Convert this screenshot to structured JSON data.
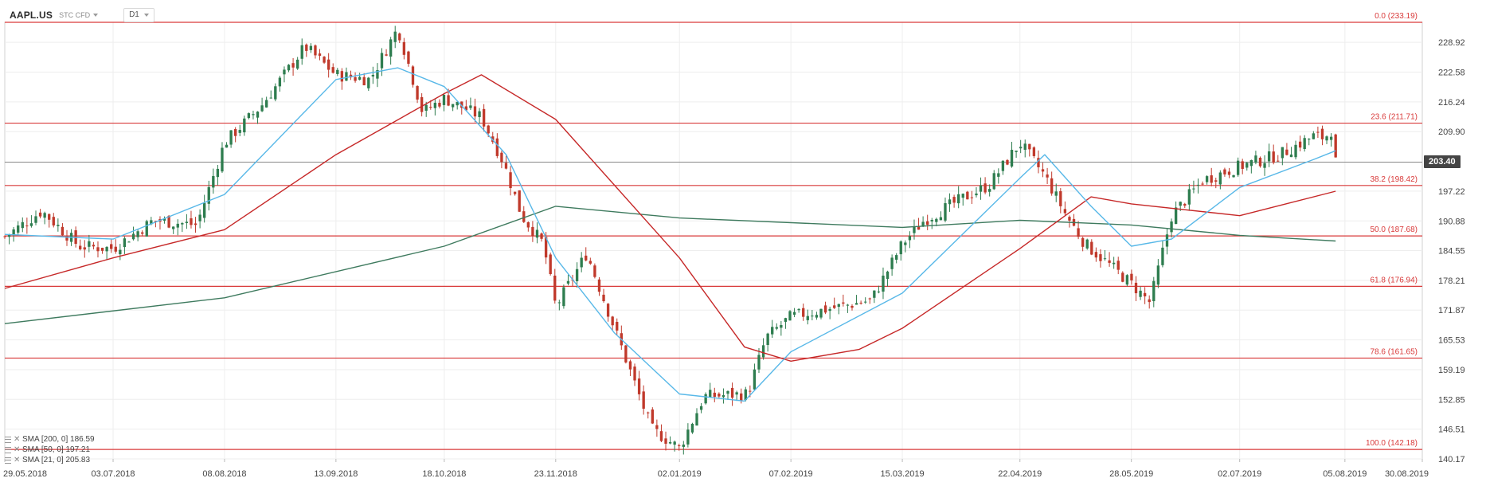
{
  "toolbar": {
    "symbol": "AAPL.US",
    "subtype": "STC CFD",
    "timeframe": "D1"
  },
  "legend": [
    {
      "label": "SMA [200, 0] 186.59"
    },
    {
      "label": "SMA [50, 0] 197.21"
    },
    {
      "label": "SMA [21, 0] 205.83"
    }
  ],
  "current_price": "203.40",
  "colors": {
    "up": "#2e7d4f",
    "down": "#c0392b",
    "fib": "#d93a3a",
    "sma200": "#3e7a5e",
    "sma50": "#c62828",
    "sma21": "#58b8e8",
    "grid": "#eeeeee",
    "price_line": "#888888"
  },
  "chart_data": {
    "type": "candlestick",
    "title": "",
    "ylim": [
      140.17,
      233.19
    ],
    "y_ticks": [
      "228.92",
      "222.58",
      "216.24",
      "209.90",
      "203.40",
      "197.22",
      "190.88",
      "184.55",
      "178.21",
      "171.87",
      "165.53",
      "159.19",
      "152.85",
      "146.51",
      "140.17"
    ],
    "x_labels": [
      "29.05.2018",
      "03.07.2018",
      "08.08.2018",
      "13.09.2018",
      "18.10.2018",
      "23.11.2018",
      "02.01.2019",
      "07.02.2019",
      "15.03.2019",
      "22.04.2019",
      "28.05.2019",
      "02.07.2019",
      "05.08.2019",
      "30.08.2019"
    ],
    "fib_levels": [
      {
        "label": "0.0 (233.19)",
        "value": 233.19
      },
      {
        "label": "23.6 (211.71)",
        "value": 211.71
      },
      {
        "label": "38.2 (198.42)",
        "value": 198.42
      },
      {
        "label": "50.0 (187.68)",
        "value": 187.68
      },
      {
        "label": "61.8 (176.94)",
        "value": 176.94
      },
      {
        "label": "78.6 (161.65)",
        "value": 161.65
      },
      {
        "label": "100.0 (142.18)",
        "value": 142.18
      }
    ],
    "price_line": 203.4,
    "close_path": [
      {
        "date": "29.05.2018",
        "close": 187.5
      },
      {
        "date": "10.06.2018",
        "close": 193.0
      },
      {
        "date": "22.06.2018",
        "close": 185.5
      },
      {
        "date": "03.07.2018",
        "close": 185.0
      },
      {
        "date": "16.07.2018",
        "close": 191.0
      },
      {
        "date": "30.07.2018",
        "close": 190.0
      },
      {
        "date": "08.08.2018",
        "close": 207.5
      },
      {
        "date": "20.08.2018",
        "close": 215.5
      },
      {
        "date": "03.09.2018",
        "close": 228.0
      },
      {
        "date": "13.09.2018",
        "close": 222.0
      },
      {
        "date": "24.09.2018",
        "close": 221.0
      },
      {
        "date": "03.10.2018",
        "close": 232.0
      },
      {
        "date": "11.10.2018",
        "close": 214.0
      },
      {
        "date": "18.10.2018",
        "close": 217.0
      },
      {
        "date": "30.10.2018",
        "close": 213.0
      },
      {
        "date": "06.11.2018",
        "close": 203.5
      },
      {
        "date": "12.11.2018",
        "close": 192.0
      },
      {
        "date": "19.11.2018",
        "close": 186.0
      },
      {
        "date": "23.11.2018",
        "close": 172.5
      },
      {
        "date": "03.12.2018",
        "close": 184.0
      },
      {
        "date": "12.12.2018",
        "close": 168.0
      },
      {
        "date": "24.12.2018",
        "close": 146.5
      },
      {
        "date": "02.01.2019",
        "close": 142.5
      },
      {
        "date": "10.01.2019",
        "close": 153.5
      },
      {
        "date": "24.01.2019",
        "close": 154.0
      },
      {
        "date": "30.01.2019",
        "close": 166.0
      },
      {
        "date": "07.02.2019",
        "close": 170.5
      },
      {
        "date": "22.02.2019",
        "close": 172.5
      },
      {
        "date": "05.03.2019",
        "close": 174.0
      },
      {
        "date": "15.03.2019",
        "close": 186.0
      },
      {
        "date": "22.03.2019",
        "close": 191.0
      },
      {
        "date": "03.04.2019",
        "close": 195.5
      },
      {
        "date": "12.04.2019",
        "close": 198.5
      },
      {
        "date": "22.04.2019",
        "close": 207.5
      },
      {
        "date": "30.04.2019",
        "close": 200.5
      },
      {
        "date": "07.05.2019",
        "close": 192.0
      },
      {
        "date": "13.05.2019",
        "close": 186.0
      },
      {
        "date": "28.05.2019",
        "close": 177.5
      },
      {
        "date": "03.06.2019",
        "close": 173.5
      },
      {
        "date": "10.06.2019",
        "close": 192.0
      },
      {
        "date": "20.06.2019",
        "close": 199.5
      },
      {
        "date": "02.07.2019",
        "close": 202.5
      },
      {
        "date": "15.07.2019",
        "close": 205.0
      },
      {
        "date": "26.07.2019",
        "close": 209.0
      },
      {
        "date": "30.07.2019",
        "close": 208.5
      },
      {
        "date": "31.07.2019",
        "close": 213.0
      },
      {
        "date": "01.08.2019",
        "close": 208.0
      },
      {
        "date": "02.08.2019",
        "close": 203.4
      }
    ],
    "series": [
      {
        "name": "SMA [200, 0] 186.59",
        "points": [
          {
            "date": "29.05.2018",
            "value": 169.0
          },
          {
            "date": "08.08.2018",
            "value": 174.5
          },
          {
            "date": "18.10.2018",
            "value": 185.5
          },
          {
            "date": "23.11.2018",
            "value": 194.0
          },
          {
            "date": "02.01.2019",
            "value": 191.5
          },
          {
            "date": "15.03.2019",
            "value": 189.5
          },
          {
            "date": "22.04.2019",
            "value": 191.0
          },
          {
            "date": "28.05.2019",
            "value": 190.0
          },
          {
            "date": "02.07.2019",
            "value": 187.8
          },
          {
            "date": "02.08.2019",
            "value": 186.59
          }
        ]
      },
      {
        "name": "SMA [50, 0] 197.21",
        "points": [
          {
            "date": "29.05.2018",
            "value": 176.5
          },
          {
            "date": "03.07.2018",
            "value": 183.0
          },
          {
            "date": "08.08.2018",
            "value": 189.0
          },
          {
            "date": "13.09.2018",
            "value": 205.0
          },
          {
            "date": "18.10.2018",
            "value": 218.0
          },
          {
            "date": "30.10.2018",
            "value": 222.0
          },
          {
            "date": "23.11.2018",
            "value": 212.5
          },
          {
            "date": "02.01.2019",
            "value": 183.0
          },
          {
            "date": "23.01.2019",
            "value": 164.0
          },
          {
            "date": "07.02.2019",
            "value": 161.0
          },
          {
            "date": "01.03.2019",
            "value": 163.5
          },
          {
            "date": "15.03.2019",
            "value": 168.0
          },
          {
            "date": "22.04.2019",
            "value": 185.0
          },
          {
            "date": "15.05.2019",
            "value": 196.0
          },
          {
            "date": "28.05.2019",
            "value": 194.5
          },
          {
            "date": "02.07.2019",
            "value": 192.0
          },
          {
            "date": "02.08.2019",
            "value": 197.21
          }
        ]
      },
      {
        "name": "SMA [21, 0] 205.83",
        "points": [
          {
            "date": "29.05.2018",
            "value": 188.0
          },
          {
            "date": "03.07.2018",
            "value": 187.0
          },
          {
            "date": "08.08.2018",
            "value": 196.5
          },
          {
            "date": "13.09.2018",
            "value": 221.0
          },
          {
            "date": "03.10.2018",
            "value": 223.5
          },
          {
            "date": "18.10.2018",
            "value": 219.5
          },
          {
            "date": "07.11.2018",
            "value": 205.0
          },
          {
            "date": "23.11.2018",
            "value": 183.0
          },
          {
            "date": "12.12.2018",
            "value": 167.0
          },
          {
            "date": "02.01.2019",
            "value": 154.0
          },
          {
            "date": "23.01.2019",
            "value": 152.5
          },
          {
            "date": "07.02.2019",
            "value": 163.0
          },
          {
            "date": "15.03.2019",
            "value": 175.5
          },
          {
            "date": "22.04.2019",
            "value": 200.0
          },
          {
            "date": "30.04.2019",
            "value": 205.0
          },
          {
            "date": "15.05.2019",
            "value": 194.0
          },
          {
            "date": "28.05.2019",
            "value": 185.5
          },
          {
            "date": "10.06.2019",
            "value": 187.0
          },
          {
            "date": "02.07.2019",
            "value": 198.0
          },
          {
            "date": "26.07.2019",
            "value": 204.0
          },
          {
            "date": "02.08.2019",
            "value": 205.83
          }
        ]
      }
    ]
  }
}
